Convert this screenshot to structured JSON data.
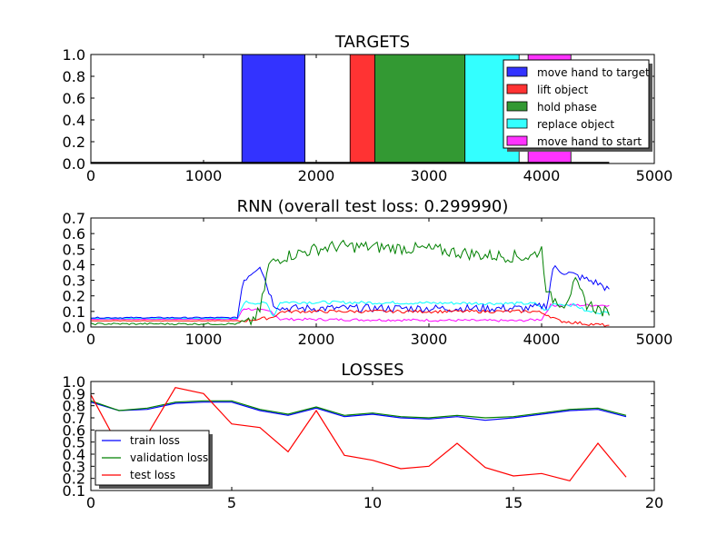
{
  "chart_data": [
    {
      "type": "bar",
      "subtype": "horizontal-spans",
      "title": "TARGETS",
      "xlim": [
        0,
        5000
      ],
      "ylim": [
        0,
        1
      ],
      "xticks": [
        "0",
        "1000",
        "2000",
        "3000",
        "4000",
        "5000"
      ],
      "yticks": [
        "0.0",
        "0.2",
        "0.4",
        "0.6",
        "0.8",
        "1.0"
      ],
      "legend_position": "top-right",
      "segments": [
        {
          "name": "move hand to target",
          "start": 1340,
          "end": 1900,
          "color": "#3333ff"
        },
        {
          "name": "lift object",
          "start": 2300,
          "end": 2520,
          "color": "#ff3333"
        },
        {
          "name": "hold phase",
          "start": 2520,
          "end": 3320,
          "color": "#339933"
        },
        {
          "name": "replace object",
          "start": 3320,
          "end": 3800,
          "color": "#33ffff"
        },
        {
          "name": "move hand to start",
          "start": 3880,
          "end": 4260,
          "color": "#ff33ff"
        }
      ],
      "baseline_end": 4600
    },
    {
      "type": "line",
      "title": "RNN (overall test loss: 0.299990)",
      "xlim": [
        0,
        5000
      ],
      "ylim": [
        0,
        0.7
      ],
      "xticks": [
        "0",
        "1000",
        "2000",
        "3000",
        "4000",
        "5000"
      ],
      "yticks": [
        "0.0",
        "0.1",
        "0.2",
        "0.3",
        "0.4",
        "0.5",
        "0.6",
        "0.7"
      ],
      "sample_step": 20,
      "series": [
        {
          "color": "#ff00ff",
          "noise": 0.008,
          "keypoints": [
            [
              0,
              0.05
            ],
            [
              1300,
              0.05
            ],
            [
              1350,
              0.12
            ],
            [
              1600,
              0.1
            ],
            [
              1680,
              0.05
            ],
            [
              3800,
              0.04
            ],
            [
              4000,
              0.05
            ],
            [
              4080,
              0.14
            ],
            [
              4600,
              0.14
            ]
          ]
        },
        {
          "color": "#00ffff",
          "noise": 0.01,
          "keypoints": [
            [
              0,
              0.055
            ],
            [
              1300,
              0.055
            ],
            [
              1360,
              0.16
            ],
            [
              1560,
              0.15
            ],
            [
              1620,
              0.07
            ],
            [
              1680,
              0.16
            ],
            [
              3950,
              0.15
            ],
            [
              4050,
              0.1
            ],
            [
              4100,
              0.15
            ],
            [
              4300,
              0.14
            ],
            [
              4400,
              0.1
            ],
            [
              4600,
              0.09
            ]
          ]
        },
        {
          "color": "#0000ff",
          "noise": 0.025,
          "keypoints": [
            [
              0,
              0.06
            ],
            [
              1300,
              0.06
            ],
            [
              1350,
              0.3
            ],
            [
              1500,
              0.4
            ],
            [
              1620,
              0.15
            ],
            [
              1700,
              0.12
            ],
            [
              3900,
              0.12
            ],
            [
              4050,
              0.14
            ],
            [
              4100,
              0.38
            ],
            [
              4300,
              0.33
            ],
            [
              4500,
              0.28
            ],
            [
              4600,
              0.24
            ]
          ]
        },
        {
          "color": "#ff0000",
          "noise": 0.01,
          "keypoints": [
            [
              0,
              0.04
            ],
            [
              1350,
              0.04
            ],
            [
              1600,
              0.06
            ],
            [
              1700,
              0.1
            ],
            [
              3950,
              0.1
            ],
            [
              4050,
              0.08
            ],
            [
              4150,
              0.04
            ],
            [
              4400,
              0.02
            ],
            [
              4600,
              0.01
            ]
          ]
        },
        {
          "color": "#008000",
          "noise": 0.04,
          "keypoints": [
            [
              0,
              0.02
            ],
            [
              1400,
              0.02
            ],
            [
              1500,
              0.1
            ],
            [
              1580,
              0.4
            ],
            [
              1700,
              0.45
            ],
            [
              2000,
              0.5
            ],
            [
              2200,
              0.52
            ],
            [
              3000,
              0.5
            ],
            [
              3500,
              0.46
            ],
            [
              3900,
              0.45
            ],
            [
              4000,
              0.5
            ],
            [
              4050,
              0.2
            ],
            [
              4200,
              0.15
            ],
            [
              4300,
              0.28
            ],
            [
              4400,
              0.15
            ],
            [
              4600,
              0.08
            ]
          ]
        }
      ]
    },
    {
      "type": "line",
      "title": "LOSSES",
      "xlim": [
        0,
        20
      ],
      "ylim": [
        0.1,
        1.0
      ],
      "xticks": [
        "0",
        "5",
        "10",
        "15",
        "20"
      ],
      "yticks": [
        "0.1",
        "0.2",
        "0.3",
        "0.4",
        "0.5",
        "0.6",
        "0.7",
        "0.8",
        "0.9",
        "1.0"
      ],
      "legend_position": "lower-left",
      "x": [
        0,
        1,
        2,
        3,
        4,
        5,
        6,
        7,
        8,
        9,
        10,
        11,
        12,
        13,
        14,
        15,
        16,
        17,
        18,
        19
      ],
      "series": [
        {
          "name": "train loss",
          "color": "#0000ff",
          "values": [
            0.83,
            0.76,
            0.77,
            0.82,
            0.83,
            0.83,
            0.76,
            0.72,
            0.78,
            0.71,
            0.73,
            0.7,
            0.69,
            0.71,
            0.68,
            0.7,
            0.73,
            0.76,
            0.77,
            0.71
          ]
        },
        {
          "name": "validation loss",
          "color": "#008000",
          "values": [
            0.84,
            0.76,
            0.78,
            0.83,
            0.84,
            0.84,
            0.77,
            0.73,
            0.79,
            0.72,
            0.74,
            0.71,
            0.7,
            0.72,
            0.7,
            0.71,
            0.74,
            0.77,
            0.78,
            0.72
          ]
        },
        {
          "name": "test loss",
          "color": "#ff0000",
          "values": [
            0.89,
            0.46,
            0.56,
            0.95,
            0.9,
            0.65,
            0.62,
            0.42,
            0.76,
            0.39,
            0.35,
            0.28,
            0.3,
            0.49,
            0.29,
            0.22,
            0.24,
            0.18,
            0.49,
            0.21
          ]
        }
      ]
    }
  ]
}
